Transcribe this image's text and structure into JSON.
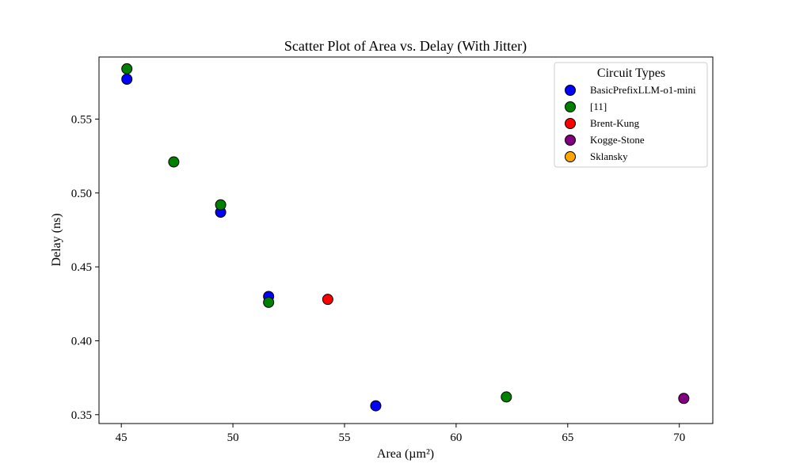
{
  "chart_data": {
    "type": "scatter",
    "title": "Scatter Plot of Area vs. Delay (With Jitter)",
    "xlabel": "Area (µm²)",
    "ylabel": "Delay (ns)",
    "xlim": [
      44.0,
      71.5
    ],
    "ylim": [
      0.344,
      0.592
    ],
    "x_ticks": [
      45,
      50,
      55,
      60,
      65,
      70
    ],
    "y_ticks": [
      0.35,
      0.4,
      0.45,
      0.5,
      0.55
    ],
    "x_tick_labels": [
      "45",
      "50",
      "55",
      "60",
      "65",
      "70"
    ],
    "y_tick_labels": [
      "0.35",
      "0.40",
      "0.45",
      "0.50",
      "0.55"
    ],
    "grid": false,
    "legend": {
      "title": "Circuit Types",
      "position": "upper right"
    },
    "series": [
      {
        "name": "BasicPrefixLLM-o1-mini",
        "color": "#0000ff",
        "points": [
          [
            45.25,
            0.577
          ],
          [
            49.45,
            0.487
          ],
          [
            51.6,
            0.43
          ],
          [
            56.4,
            0.356
          ]
        ]
      },
      {
        "name": "[11]",
        "color": "#008000",
        "points": [
          [
            45.25,
            0.584
          ],
          [
            47.35,
            0.521
          ],
          [
            49.45,
            0.492
          ],
          [
            51.6,
            0.426
          ],
          [
            62.25,
            0.362
          ]
        ]
      },
      {
        "name": "Brent-Kung",
        "color": "#ff0000",
        "points": [
          [
            54.25,
            0.428
          ]
        ]
      },
      {
        "name": "Kogge-Stone",
        "color": "#800080",
        "points": [
          [
            70.2,
            0.361
          ]
        ]
      },
      {
        "name": "Sklansky",
        "color": "#ffa500",
        "points": []
      }
    ]
  }
}
